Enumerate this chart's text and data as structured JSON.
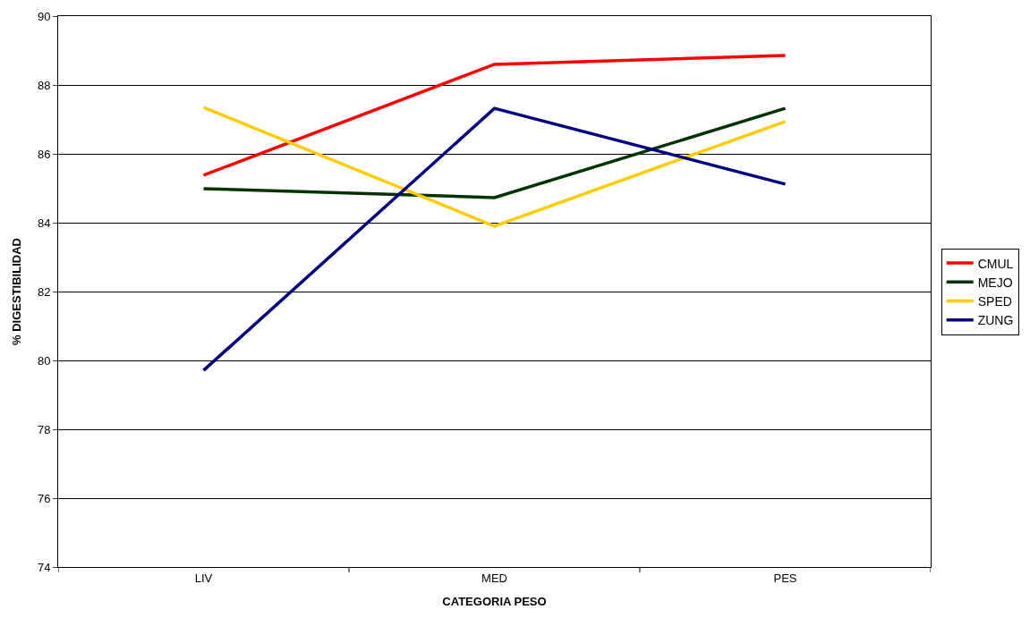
{
  "chart_data": {
    "type": "line",
    "xlabel": "CATEGORIA PESO",
    "ylabel": "% DIGESTIBILIDAD",
    "categories": [
      "LIV",
      "MED",
      "PES"
    ],
    "series": [
      {
        "name": "CMUL",
        "color": "#ff0000",
        "values": [
          85.38,
          88.6,
          88.86
        ]
      },
      {
        "name": "MEJO",
        "color": "#003300",
        "values": [
          84.99,
          84.73,
          87.32
        ]
      },
      {
        "name": "SPED",
        "color": "#ffcc00",
        "values": [
          87.35,
          83.9,
          86.94
        ]
      },
      {
        "name": "ZUNG",
        "color": "#000080",
        "values": [
          79.71,
          87.32,
          85.12
        ]
      }
    ],
    "ylim": [
      74,
      90
    ],
    "yticks": [
      74,
      76,
      78,
      80,
      82,
      84,
      86,
      88,
      90
    ],
    "grid": "y",
    "legend": "right",
    "marker": "none",
    "line_style": "solid"
  }
}
